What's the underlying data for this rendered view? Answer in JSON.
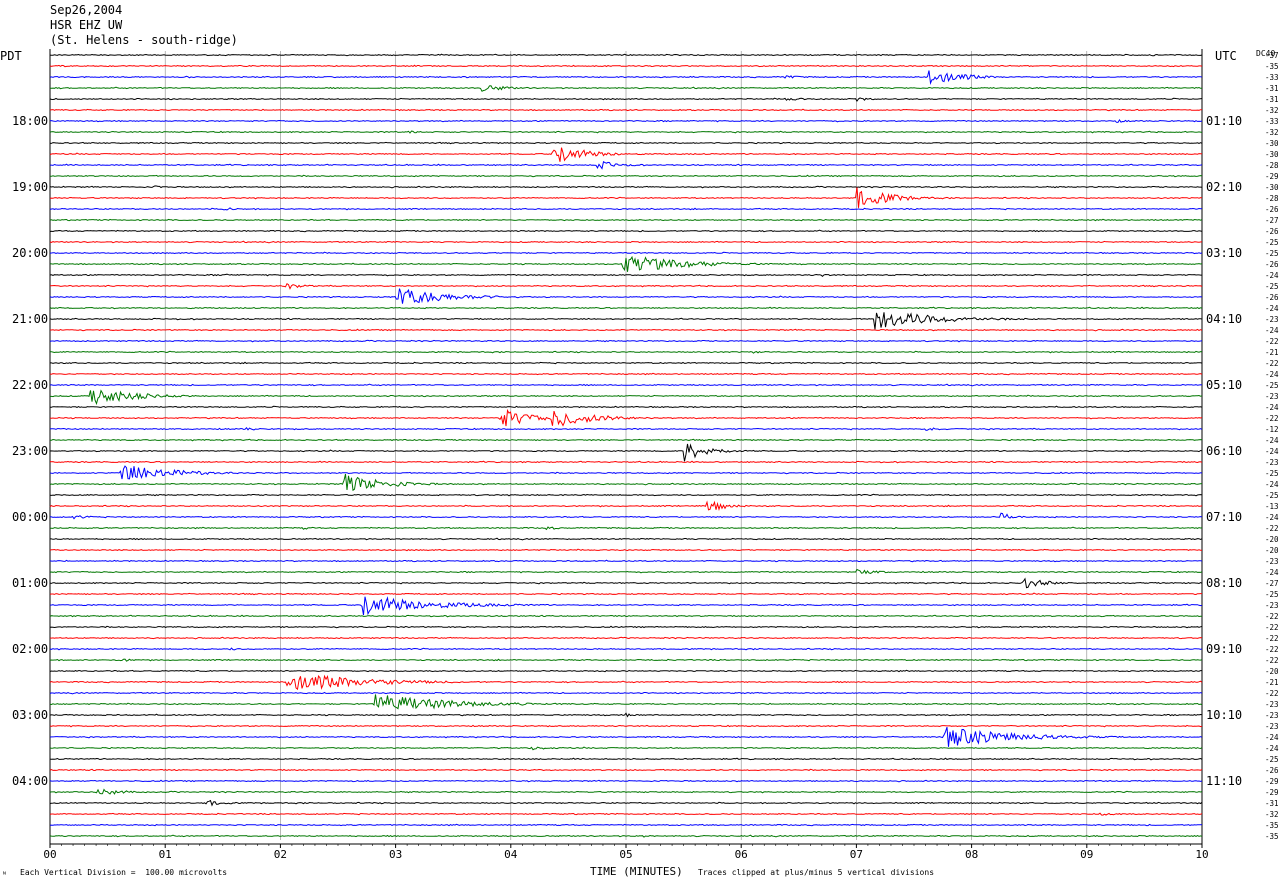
{
  "header": {
    "date": "Sep26,2004",
    "station": "HSR EHZ UW",
    "location": "(St. Helens - south-ridge)"
  },
  "left_axis_title": "PDT",
  "right_axis_title": "UTC",
  "dc_label": "DC",
  "dc_label_sup": "40",
  "footer": {
    "scale_note": "Each Vertical Division =  100.00 microvolts",
    "clip_note": "Traces clipped at plus/minus 5 vertical divisions",
    "corner_mark": "ᴺ"
  },
  "colors": {
    "trace_cycle": [
      "#000000",
      "#ff0000",
      "#0000ff",
      "#007700"
    ],
    "grid": "#000000"
  },
  "chart_data": {
    "type": "line",
    "title": "",
    "xlabel": "TIME (MINUTES)",
    "ylabel": "",
    "xlim": [
      0,
      10
    ],
    "x_ticks": [
      "00",
      "01",
      "02",
      "03",
      "04",
      "05",
      "06",
      "07",
      "08",
      "09",
      "10"
    ],
    "traces_count": 72,
    "minutes_per_line": 10,
    "left_time_labels": [
      {
        "label": "18:00",
        "line": 6
      },
      {
        "label": "19:00",
        "line": 12
      },
      {
        "label": "20:00",
        "line": 18
      },
      {
        "label": "21:00",
        "line": 24
      },
      {
        "label": "22:00",
        "line": 30
      },
      {
        "label": "23:00",
        "line": 36
      },
      {
        "label": "00:00",
        "line": 42
      },
      {
        "label": "01:00",
        "line": 48
      },
      {
        "label": "02:00",
        "line": 54
      },
      {
        "label": "03:00",
        "line": 60
      },
      {
        "label": "04:00",
        "line": 66
      }
    ],
    "right_time_labels": [
      {
        "label": "01:10",
        "line": 6
      },
      {
        "label": "02:10",
        "line": 12
      },
      {
        "label": "03:10",
        "line": 18
      },
      {
        "label": "04:10",
        "line": 24
      },
      {
        "label": "05:10",
        "line": 30
      },
      {
        "label": "06:10",
        "line": 36
      },
      {
        "label": "07:10",
        "line": 42
      },
      {
        "label": "08:10",
        "line": 48
      },
      {
        "label": "09:10",
        "line": 54
      },
      {
        "label": "10:10",
        "line": 60
      },
      {
        "label": "11:10",
        "line": 66
      }
    ],
    "dc_offsets": [
      "-37",
      "-35",
      "-33",
      "-31",
      "-31",
      "-32",
      "-33",
      "-32",
      "-30",
      "-30",
      "-28",
      "-29",
      "-30",
      "-28",
      "-26",
      "-27",
      "-26",
      "-25",
      "-25",
      "-26",
      "-24",
      "-25",
      "-26",
      "-24",
      "-23",
      "-24",
      "-22",
      "-21",
      "-22",
      "-24",
      "-25",
      "-23",
      "-24",
      "-22",
      "-12",
      "-24",
      "-24",
      "-23",
      "-25",
      "-24",
      "-25",
      "-13",
      "-24",
      "-22",
      "-20",
      "-20",
      "-23",
      "-24",
      "-27",
      "-25",
      "-23",
      "-22",
      "-22",
      "-22",
      "-22",
      "-22",
      "-20",
      "-21",
      "-22",
      "-23",
      "-23",
      "-23",
      "-24",
      "-24",
      "-25",
      "-26",
      "-29",
      "-29",
      "-31",
      "-32",
      "-35",
      "-35"
    ],
    "events": [
      {
        "line": 0,
        "start_min": 9.57,
        "duration_min": 0.25,
        "amplitude_div": 0.5
      },
      {
        "line": 2,
        "start_min": 6.37,
        "duration_min": 0.35,
        "amplitude_div": 1.0
      },
      {
        "line": 2,
        "start_min": 7.62,
        "duration_min": 0.6,
        "amplitude_div": 5
      },
      {
        "line": 3,
        "start_min": 3.75,
        "duration_min": 0.6,
        "amplitude_div": 1.5
      },
      {
        "line": 4,
        "start_min": 6.37,
        "duration_min": 0.4,
        "amplitude_div": 1.0
      },
      {
        "line": 4,
        "start_min": 7.0,
        "duration_min": 0.3,
        "amplitude_div": 1.0
      },
      {
        "line": 6,
        "start_min": 9.25,
        "duration_min": 0.3,
        "amplitude_div": 0.8
      },
      {
        "line": 7,
        "start_min": 3.1,
        "duration_min": 0.3,
        "amplitude_div": 0.8
      },
      {
        "line": 9,
        "start_min": 4.35,
        "duration_min": 0.7,
        "amplitude_div": 5
      },
      {
        "line": 10,
        "start_min": 4.75,
        "duration_min": 0.5,
        "amplitude_div": 2
      },
      {
        "line": 12,
        "start_min": 0.9,
        "duration_min": 0.3,
        "amplitude_div": 0.7
      },
      {
        "line": 13,
        "start_min": 7.0,
        "duration_min": 0.7,
        "amplitude_div": 5
      },
      {
        "line": 14,
        "start_min": 1.5,
        "duration_min": 0.4,
        "amplitude_div": 0.8
      },
      {
        "line": 19,
        "start_min": 4.95,
        "duration_min": 1.2,
        "amplitude_div": 5
      },
      {
        "line": 20,
        "start_min": 1.5,
        "duration_min": 0.2,
        "amplitude_div": 0.8
      },
      {
        "line": 20,
        "start_min": 6.7,
        "duration_min": 0.2,
        "amplitude_div": 0.8
      },
      {
        "line": 21,
        "start_min": 2.05,
        "duration_min": 0.4,
        "amplitude_div": 1.5
      },
      {
        "line": 22,
        "start_min": 3.0,
        "duration_min": 1.0,
        "amplitude_div": 5
      },
      {
        "line": 24,
        "start_min": 7.15,
        "duration_min": 1.2,
        "amplitude_div": 5
      },
      {
        "line": 27,
        "start_min": 6.1,
        "duration_min": 0.3,
        "amplitude_div": 0.6
      },
      {
        "line": 31,
        "start_min": 0.35,
        "duration_min": 0.8,
        "amplitude_div": 5
      },
      {
        "line": 33,
        "start_min": 3.9,
        "duration_min": 0.6,
        "amplitude_div": 5
      },
      {
        "line": 33,
        "start_min": 4.35,
        "duration_min": 0.8,
        "amplitude_div": 5
      },
      {
        "line": 34,
        "start_min": 1.7,
        "duration_min": 0.3,
        "amplitude_div": 0.8
      },
      {
        "line": 34,
        "start_min": 7.6,
        "duration_min": 0.3,
        "amplitude_div": 1.2
      },
      {
        "line": 36,
        "start_min": 5.5,
        "duration_min": 0.5,
        "amplitude_div": 5
      },
      {
        "line": 38,
        "start_min": 0.6,
        "duration_min": 1.0,
        "amplitude_div": 5
      },
      {
        "line": 39,
        "start_min": 2.55,
        "duration_min": 0.8,
        "amplitude_div": 5
      },
      {
        "line": 41,
        "start_min": 5.7,
        "duration_min": 0.4,
        "amplitude_div": 3
      },
      {
        "line": 42,
        "start_min": 0.2,
        "duration_min": 0.3,
        "amplitude_div": 1.2
      },
      {
        "line": 42,
        "start_min": 8.25,
        "duration_min": 0.3,
        "amplitude_div": 2
      },
      {
        "line": 43,
        "start_min": 2.2,
        "duration_min": 0.3,
        "amplitude_div": 0.6
      },
      {
        "line": 43,
        "start_min": 4.3,
        "duration_min": 0.3,
        "amplitude_div": 1.0
      },
      {
        "line": 47,
        "start_min": 7.0,
        "duration_min": 0.5,
        "amplitude_div": 1.2
      },
      {
        "line": 48,
        "start_min": 8.45,
        "duration_min": 0.5,
        "amplitude_div": 2.5
      },
      {
        "line": 50,
        "start_min": 2.7,
        "duration_min": 1.4,
        "amplitude_div": 5
      },
      {
        "line": 51,
        "start_min": 9.1,
        "duration_min": 0.2,
        "amplitude_div": 0.8
      },
      {
        "line": 54,
        "start_min": 1.55,
        "duration_min": 0.3,
        "amplitude_div": 0.7
      },
      {
        "line": 55,
        "start_min": 0.6,
        "duration_min": 0.3,
        "amplitude_div": 1.0
      },
      {
        "line": 57,
        "start_min": 2.05,
        "duration_min": 1.5,
        "amplitude_div": 5
      },
      {
        "line": 59,
        "start_min": 2.8,
        "duration_min": 1.5,
        "amplitude_div": 5
      },
      {
        "line": 60,
        "start_min": 5.0,
        "duration_min": 0.3,
        "amplitude_div": 0.8
      },
      {
        "line": 62,
        "start_min": 7.75,
        "duration_min": 1.4,
        "amplitude_div": 5
      },
      {
        "line": 63,
        "start_min": 4.15,
        "duration_min": 0.4,
        "amplitude_div": 1.2
      },
      {
        "line": 67,
        "start_min": 0.4,
        "duration_min": 0.5,
        "amplitude_div": 2
      },
      {
        "line": 68,
        "start_min": 1.35,
        "duration_min": 0.4,
        "amplitude_div": 1.5
      },
      {
        "line": 69,
        "start_min": 9.1,
        "duration_min": 0.5,
        "amplitude_div": 0.8
      },
      {
        "line": 71,
        "start_min": 5.15,
        "duration_min": 0.2,
        "amplitude_div": 0.6
      }
    ]
  }
}
